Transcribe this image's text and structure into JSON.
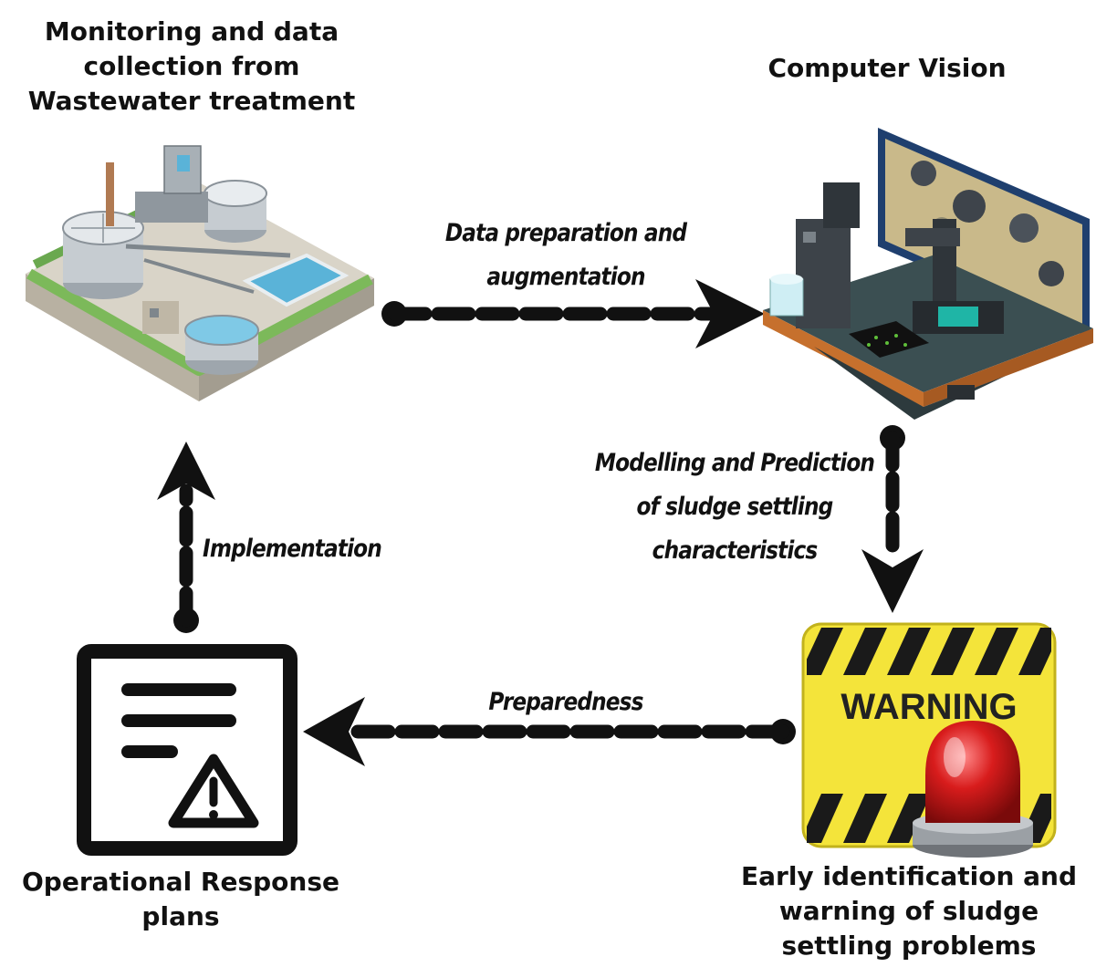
{
  "nodes": {
    "wastewater": {
      "title": "Monitoring and data\ncollection from\nWastewater treatment"
    },
    "vision": {
      "title": "Computer Vision"
    },
    "warning": {
      "title": "Early identification and\nwarning of sludge\nsettling problems",
      "sign_text": "WARNING"
    },
    "plans": {
      "title": "Operational Response\nplans"
    }
  },
  "edges": {
    "data_prep": {
      "label": "Data preparation and\naugmentation"
    },
    "modelling": {
      "label": "Modelling and Prediction\nof  sludge settling\ncharacteristics"
    },
    "preparedness": {
      "label": "Preparedness"
    },
    "implementation": {
      "label": "Implementation"
    }
  },
  "colors": {
    "arrow": "#111111",
    "warning_yellow": "#f4e43a",
    "siren_red": "#d81c1c",
    "water_blue": "#5ab3d8",
    "grass_green": "#7cb95a",
    "screen_navy": "#1f3f6e"
  },
  "icons": {
    "plant": "wastewater-plant-illustration",
    "lab": "computer-vision-lab-illustration",
    "warning": "warning-sign-siren-illustration",
    "document": "document-warning-icon"
  }
}
